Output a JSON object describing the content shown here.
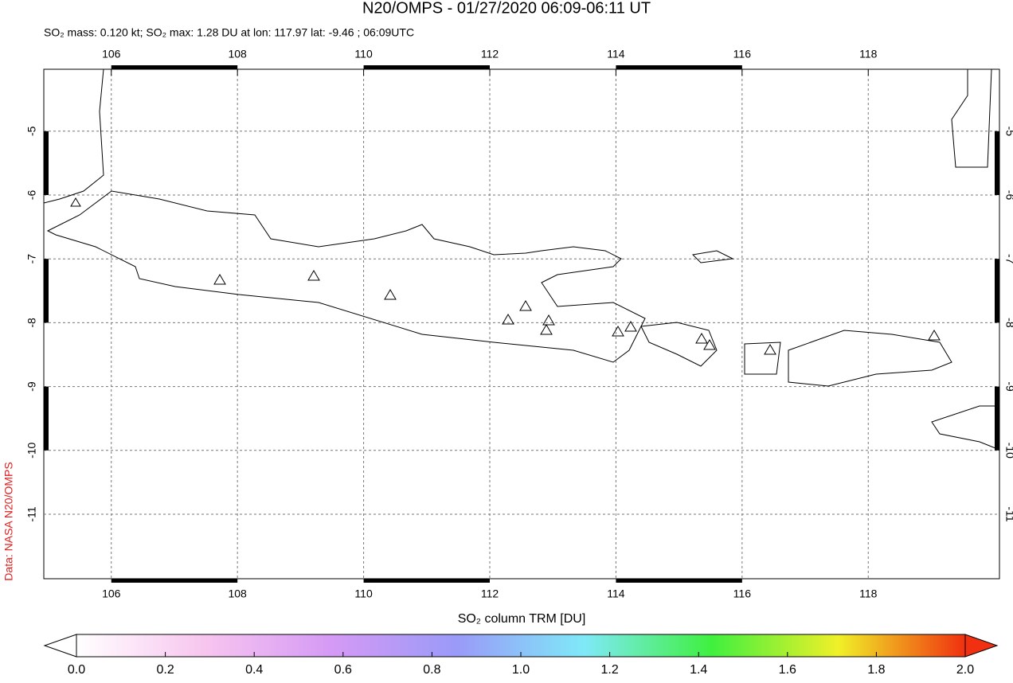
{
  "chart_data": {
    "type": "map",
    "title": "N20/OMPS - 01/27/2020 06:09-06:11 UT",
    "subtitle": "SO₂ mass: 0.120 kt; SO₂ max: 1.28 DU at lon: 117.97 lat: -9.46 ; 06:09UTC",
    "credit": "Data: NASA N20/OMPS",
    "xlim": [
      104.93,
      120.08
    ],
    "ylim": [
      -12.01,
      -4.03
    ],
    "xticks": [
      106,
      108,
      110,
      112,
      114,
      116,
      118
    ],
    "yticks": [
      -5,
      -6,
      -7,
      -8,
      -9,
      -10,
      -11
    ],
    "grid": true,
    "colorbar": {
      "label": "SO₂ column TRM [DU]",
      "clim": [
        0,
        2
      ],
      "ticks": [
        {
          "value": 0,
          "label": "0.0"
        },
        0.2,
        0.4,
        0.6,
        0.8,
        {
          "value": 1,
          "label": "1.0"
        },
        1.2,
        1.4,
        1.6,
        1.8,
        {
          "value": 2,
          "label": "2.0"
        }
      ],
      "colors": [
        "#ffffff",
        "#f7c6ef",
        "#d59af5",
        "#9a9af8",
        "#7fe9f8",
        "#3ff03f",
        "#f0f028",
        "#f03010"
      ]
    }
  }
}
